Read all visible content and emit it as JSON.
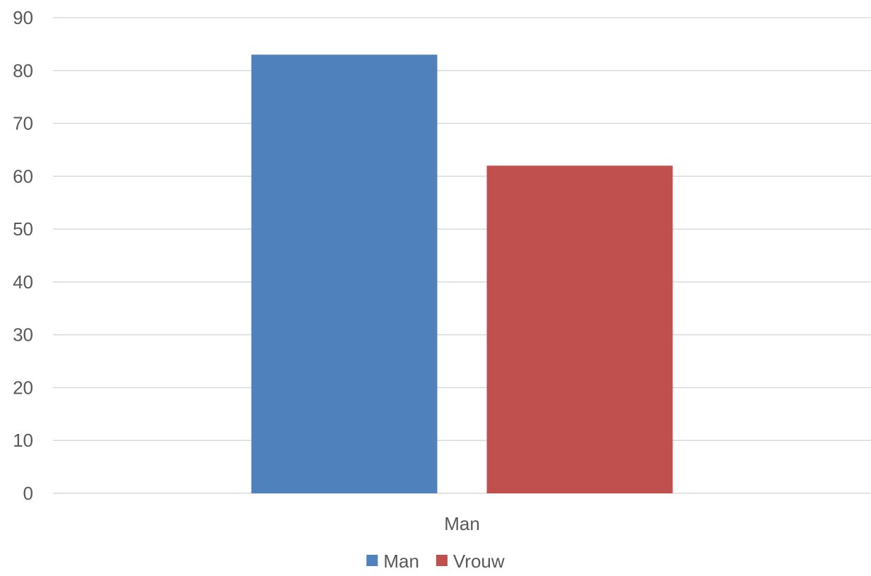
{
  "chart_data": {
    "type": "bar",
    "categories": [
      "Man"
    ],
    "series": [
      {
        "name": "Man",
        "values": [
          83
        ],
        "color": "#4F81BD"
      },
      {
        "name": "Vrouw",
        "values": [
          62
        ],
        "color": "#C0504D"
      }
    ],
    "title": "",
    "xlabel": "",
    "ylabel": "",
    "ylim": [
      0,
      90
    ],
    "yticks": [
      0,
      10,
      20,
      30,
      40,
      50,
      60,
      70,
      80,
      90
    ],
    "grid": true,
    "gridline_color": "#D9D9D9",
    "legend_position": "bottom"
  }
}
